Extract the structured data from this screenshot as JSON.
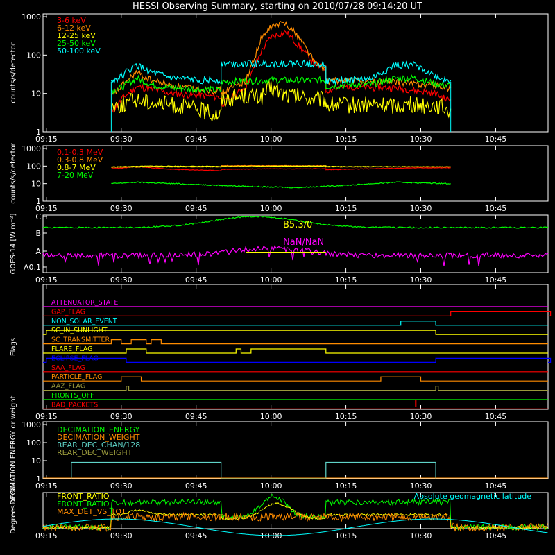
{
  "title": "HESSI Observing Summary, starting on 2010/07/28 09:14:20 UT",
  "colors": {
    "background": "#000000",
    "axis": "#ffffff",
    "red": "#ff0000",
    "orange": "#ff8c00",
    "yellow": "#ffff00",
    "green": "#00ff00",
    "cyan": "#00ffff",
    "magenta": "#ff00ff",
    "blue": "#0000ff",
    "olive": "#9a9a3c",
    "teal": "#5fd3c8"
  },
  "chart_data": [
    {
      "panel": "xray-rates",
      "type": "line",
      "ylabel": "counts/s/detector",
      "yscale": "log",
      "ylim": [
        1,
        1000
      ],
      "yticks": [
        "1",
        "10",
        "100",
        "1000"
      ],
      "xticks": [
        "09:15",
        "09:30",
        "09:45",
        "10:00",
        "10:15",
        "10:30",
        "10:45"
      ],
      "series": [
        {
          "name": "3-6 keV",
          "color": "#ff0000",
          "x": [
            "09:28",
            "09:30",
            "09:33",
            "09:36",
            "09:40",
            "09:45",
            "09:50",
            "09:50",
            "09:55",
            "09:58",
            "10:00",
            "10:03",
            "10:06",
            "10:09",
            "10:11",
            "10:11",
            "10:15",
            "10:20",
            "10:25",
            "10:29",
            "10:33",
            "10:35",
            "10:36"
          ],
          "values": [
            3,
            7,
            15,
            13,
            10,
            9,
            8,
            5,
            15,
            120,
            300,
            400,
            150,
            55,
            45,
            12,
            15,
            14,
            14,
            12,
            10,
            7,
            7
          ]
        },
        {
          "name": "6-12 keV",
          "color": "#ff8c00",
          "x": [
            "09:28",
            "09:30",
            "09:33",
            "09:36",
            "09:40",
            "09:45",
            "09:50",
            "09:50",
            "09:55",
            "09:58",
            "10:00",
            "10:03",
            "10:06",
            "10:09",
            "10:11",
            "10:11",
            "10:15",
            "10:20",
            "10:25",
            "10:29",
            "10:33",
            "10:35",
            "10:36"
          ],
          "values": [
            8,
            15,
            35,
            22,
            16,
            13,
            12,
            10,
            22,
            250,
            550,
            700,
            250,
            60,
            40,
            20,
            22,
            20,
            20,
            18,
            16,
            14,
            14
          ]
        },
        {
          "name": "12-25 keV",
          "color": "#ffff00",
          "x": [
            "09:28",
            "09:30",
            "09:33",
            "09:36",
            "09:40",
            "09:45",
            "09:48",
            "09:50",
            "09:50",
            "09:55",
            "09:58",
            "10:00",
            "10:03",
            "10:06",
            "10:09",
            "10:11",
            "10:11",
            "10:15",
            "10:20",
            "10:25",
            "10:29",
            "10:33",
            "10:35",
            "10:36"
          ],
          "values": [
            5,
            5,
            7,
            6,
            5,
            4,
            3,
            3,
            7,
            9,
            8,
            14,
            9,
            8,
            7,
            7,
            5,
            5,
            5,
            5,
            5,
            5,
            4,
            4
          ]
        },
        {
          "name": "25-50 keV",
          "color": "#00ff00",
          "x": [
            "09:28",
            "09:30",
            "09:33",
            "09:36",
            "09:40",
            "09:45",
            "09:50",
            "09:50",
            "09:55",
            "10:00",
            "10:05",
            "10:11",
            "10:11",
            "10:15",
            "10:20",
            "10:25",
            "10:29",
            "10:33",
            "10:35",
            "10:36"
          ],
          "values": [
            12,
            14,
            25,
            17,
            14,
            13,
            12,
            20,
            21,
            22,
            22,
            22,
            15,
            17,
            17,
            25,
            25,
            18,
            16,
            16
          ]
        },
        {
          "name": "50-100 keV",
          "color": "#00ffff",
          "x": [
            "09:28",
            "09:30",
            "09:33",
            "09:36",
            "09:40",
            "09:45",
            "09:50",
            "09:50",
            "10:00",
            "10:11",
            "10:11",
            "10:15",
            "10:20",
            "10:25",
            "10:29",
            "10:33",
            "10:35",
            "10:36"
          ],
          "values": [
            20,
            28,
            55,
            35,
            25,
            22,
            22,
            60,
            60,
            60,
            20,
            22,
            24,
            55,
            55,
            28,
            22,
            22
          ]
        }
      ]
    },
    {
      "panel": "gamma-rates",
      "type": "line",
      "ylabel": "counts/s/detector",
      "yscale": "log",
      "ylim": [
        1,
        1000
      ],
      "yticks": [
        "1",
        "10",
        "100",
        "1000"
      ],
      "xticks": [
        "09:15",
        "09:30",
        "09:45",
        "10:00",
        "10:15",
        "10:30",
        "10:45"
      ],
      "series": [
        {
          "name": "0.1-0.3 MeV",
          "color": "#ff0000",
          "x": [
            "09:28",
            "09:30",
            "09:33",
            "09:40",
            "09:50",
            "09:50",
            "10:00",
            "10:11",
            "10:11",
            "10:20",
            "10:30",
            "10:36"
          ],
          "values": [
            70,
            75,
            95,
            65,
            55,
            65,
            70,
            70,
            62,
            70,
            80,
            80
          ]
        },
        {
          "name": "0.3-0.8 MeV",
          "color": "#ff8c00",
          "x": [
            "09:28",
            "09:36",
            "09:50",
            "09:50",
            "10:11",
            "10:11",
            "10:36"
          ],
          "values": [
            85,
            90,
            90,
            105,
            105,
            90,
            90
          ]
        },
        {
          "name": "0.8-7 MeV",
          "color": "#ffff00",
          "x": [
            "09:28",
            "09:36",
            "09:50",
            "10:11",
            "10:11",
            "10:36"
          ],
          "values": [
            90,
            100,
            95,
            100,
            95,
            90
          ]
        },
        {
          "name": "7-20 MeV",
          "color": "#00ff00",
          "x": [
            "09:28",
            "09:33",
            "09:45",
            "09:55",
            "10:05",
            "10:15",
            "10:25",
            "10:30",
            "10:36"
          ],
          "values": [
            10,
            12,
            9,
            7,
            6,
            8,
            12,
            11,
            10
          ]
        }
      ]
    },
    {
      "panel": "goes",
      "type": "line",
      "ylabel": "GOES-14 [W m⁻²]",
      "yticks": [
        "A0.1",
        "A",
        "B",
        "C"
      ],
      "annotations": [
        {
          "text": "B5.3/0",
          "color": "#ffff00"
        },
        {
          "text": "NaN/NaN",
          "color": "#ff00ff"
        }
      ],
      "xticks": [
        "09:15",
        "09:30",
        "09:45",
        "10:00",
        "10:15",
        "10:30",
        "10:45"
      ]
    },
    {
      "panel": "flags",
      "type": "timeline",
      "ylabel": "Flags",
      "xticks": [
        "09:15",
        "09:30",
        "09:45",
        "10:00",
        "10:15",
        "10:30",
        "10:45"
      ],
      "flags": [
        {
          "name": "ATTENUATOR_STATE",
          "color": "#ff00ff"
        },
        {
          "name": "GAP_FLAG",
          "color": "#ff0000"
        },
        {
          "name": "NON_SOLAR_EVENT",
          "color": "#00ffff"
        },
        {
          "name": "SC_IN_SUNLIGHT",
          "color": "#ffff00"
        },
        {
          "name": "SC_TRANSMITTER",
          "color": "#ff8c00"
        },
        {
          "name": "FLARE_FLAG",
          "color": "#ffff00"
        },
        {
          "name": "ECLIPSE_FLAG",
          "color": "#0000ff"
        },
        {
          "name": "SAA_FLAG",
          "color": "#ff0000"
        },
        {
          "name": "PARTICLE_FLAG",
          "color": "#ff8c00"
        },
        {
          "name": "AAZ_FLAG",
          "color": "#9a9a3c"
        },
        {
          "name": "FRONTS_OFF",
          "color": "#00ff00"
        },
        {
          "name": "BAD_PACKETS",
          "color": "#ff0000"
        }
      ]
    },
    {
      "panel": "decimation",
      "type": "line",
      "ylabel": "DECIMATION ENERGY or weight",
      "yscale": "log",
      "ylim": [
        1,
        1000
      ],
      "yticks": [
        "1",
        "10",
        "100",
        "1000"
      ],
      "xticks": [
        "09:15",
        "09:30",
        "09:45",
        "10:00",
        "10:15",
        "10:30",
        "10:45"
      ],
      "series": [
        {
          "name": "DECIMATION_ENERGY",
          "color": "#00ff00"
        },
        {
          "name": "DECIMATION_WEIGHT",
          "color": "#ff8c00"
        },
        {
          "name": "REAR_DEC_CHAN/128",
          "color": "#5fd3c8",
          "x": [
            "09:20",
            "09:20",
            "09:50",
            "09:50",
            "10:11",
            "10:11",
            "10:33",
            "10:33"
          ],
          "values": [
            1,
            8,
            8,
            1,
            1,
            8,
            8,
            1
          ]
        },
        {
          "name": "REAR_DEC_WEIGHT",
          "color": "#9a9a3c"
        }
      ]
    },
    {
      "panel": "ratios",
      "type": "line",
      "ylabel": "Degrees or %",
      "xticks": [
        "09:15",
        "09:30",
        "09:45",
        "10:00",
        "10:15",
        "10:30",
        "10:45"
      ],
      "series": [
        {
          "name": "FRONT_RATIO",
          "color": "#ffff00"
        },
        {
          "name": "FRONT_RATIO_",
          "color": "#00ff00"
        },
        {
          "name": "MAX_DET_VS_TOT",
          "color": "#ff8c00"
        },
        {
          "name": "Absolute geomagnetic latitude",
          "color": "#00ffff"
        }
      ]
    }
  ]
}
